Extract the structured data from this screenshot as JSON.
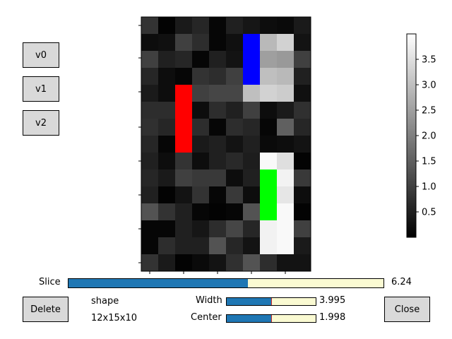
{
  "version_buttons": [
    "v0",
    "v1",
    "v2"
  ],
  "image": {
    "rows": 15,
    "cols": 10,
    "vmax": 4.0,
    "values": [
      [
        0.8,
        0.05,
        0.4,
        0.6,
        0.1,
        0.5,
        0.35,
        0.2,
        0.15,
        0.4
      ],
      [
        0.2,
        0.25,
        1.0,
        0.7,
        0.1,
        0.25,
        "B",
        2.9,
        3.3,
        0.3
      ],
      [
        1.0,
        0.5,
        0.6,
        0.1,
        0.5,
        0.3,
        "B",
        2.5,
        2.4,
        1.0
      ],
      [
        0.6,
        0.2,
        0.1,
        0.8,
        0.7,
        1.0,
        "B",
        3.0,
        2.9,
        0.5
      ],
      [
        0.4,
        0.2,
        "R",
        1.0,
        1.1,
        1.1,
        3.0,
        3.3,
        3.2,
        0.25
      ],
      [
        0.7,
        0.7,
        "R",
        0.2,
        0.7,
        0.5,
        1.0,
        0.2,
        0.4,
        0.75
      ],
      [
        0.75,
        0.6,
        "R",
        0.7,
        0.1,
        0.7,
        0.6,
        0.1,
        1.5,
        0.6
      ],
      [
        0.6,
        0.1,
        "R",
        0.4,
        0.5,
        0.3,
        0.5,
        0.15,
        0.2,
        0.3
      ],
      [
        0.5,
        0.2,
        0.8,
        0.2,
        0.5,
        0.65,
        0.45,
        3.9,
        3.5,
        0.05
      ],
      [
        0.6,
        0.4,
        1.0,
        0.9,
        0.9,
        0.2,
        0.5,
        "G",
        3.8,
        0.9
      ],
      [
        0.5,
        0.05,
        0.3,
        0.8,
        0.1,
        0.9,
        0.2,
        "G",
        3.6,
        0.2
      ],
      [
        1.3,
        0.8,
        0.5,
        0.1,
        0.05,
        0.1,
        1.3,
        "G",
        3.9,
        0.05
      ],
      [
        0.1,
        0.1,
        0.5,
        0.35,
        0.7,
        1.1,
        0.6,
        3.8,
        3.9,
        1.0
      ],
      [
        0.1,
        0.7,
        0.5,
        0.5,
        1.3,
        0.6,
        0.3,
        3.8,
        3.9,
        0.4
      ],
      [
        0.8,
        0.4,
        0.05,
        0.15,
        0.3,
        0.75,
        1.3,
        0.7,
        0.3,
        0.3
      ]
    ]
  },
  "colorbar": {
    "ticks": [
      "0.5",
      "1.0",
      "1.5",
      "2.0",
      "2.5",
      "3.0",
      "3.5"
    ],
    "tick_values": [
      0.5,
      1.0,
      1.5,
      2.0,
      2.5,
      3.0,
      3.5
    ],
    "min": 0,
    "max": 4.0
  },
  "slice": {
    "label": "Slice",
    "value": "6.24",
    "fraction": 0.57
  },
  "delete_label": "Delete",
  "close_label": "Close",
  "info": {
    "shape_label": "shape",
    "shape_value": "12x15x10"
  },
  "width": {
    "label": "Width",
    "value": "3.995",
    "fraction": 0.5
  },
  "center": {
    "label": "Center",
    "value": "1.998",
    "fraction": 0.5
  },
  "colors": {
    "red": "#ff0000",
    "green": "#00ff00",
    "blue": "#0000ff",
    "slider_fill": "#1f77b4",
    "slider_track": "#fafad2",
    "button": "#d9d9d9"
  }
}
